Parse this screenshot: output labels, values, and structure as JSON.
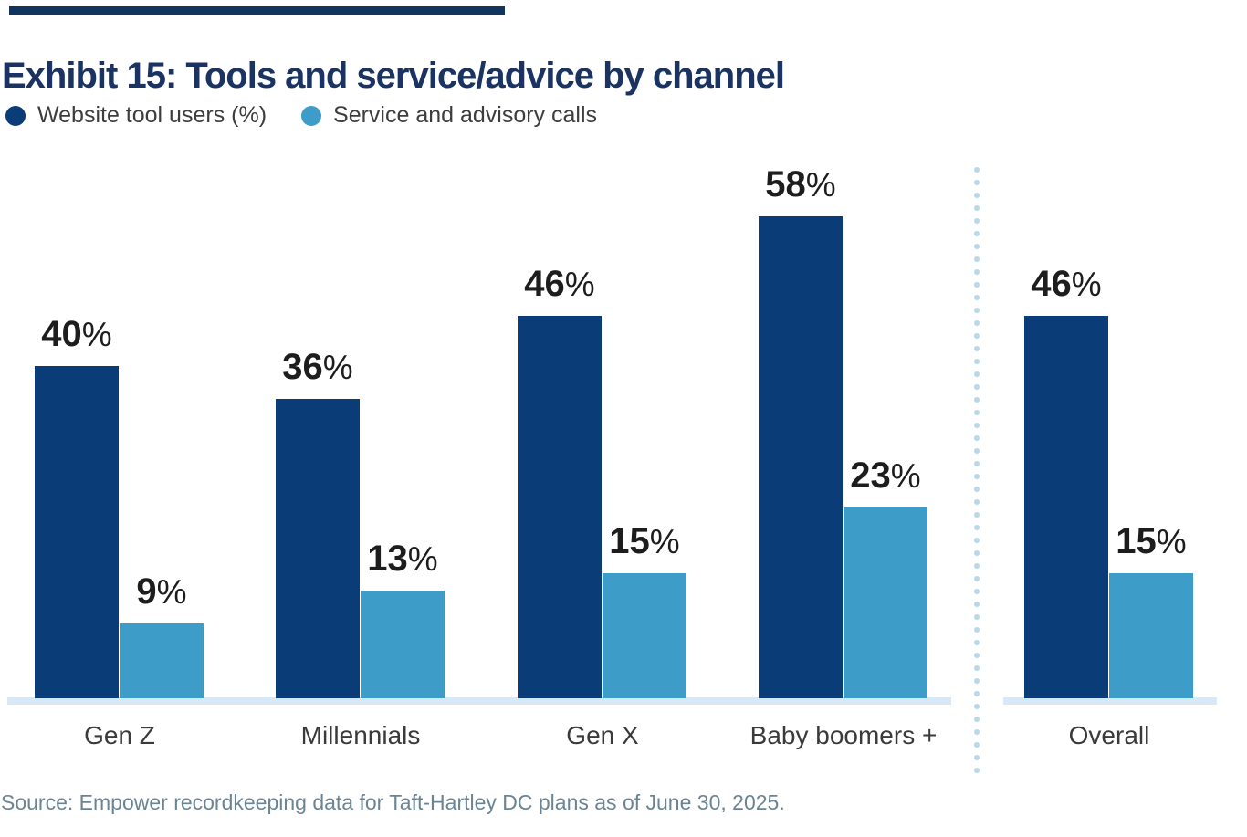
{
  "title": "Exhibit 15: Tools and service/advice by channel",
  "legend": {
    "items": [
      {
        "label": "Website tool users (%)",
        "color": "#0a3c78"
      },
      {
        "label": "Service and advisory calls",
        "color": "#3e9dc8"
      }
    ]
  },
  "source": "Source: Empower recordkeeping data for Taft-Hartley DC plans as of June 30, 2025.",
  "chart_data": {
    "type": "bar",
    "title": "Exhibit 15: Tools and service/advice by channel",
    "categories": [
      "Gen Z",
      "Millennials",
      "Gen X",
      "Baby boomers +",
      "Overall"
    ],
    "series": [
      {
        "name": "Website tool users (%)",
        "color": "#0a3c78",
        "values": [
          40,
          36,
          46,
          58,
          46
        ]
      },
      {
        "name": "Service and advisory calls",
        "color": "#3e9dc8",
        "values": [
          9,
          13,
          15,
          23,
          15
        ]
      }
    ],
    "value_suffix": "%",
    "ylim": [
      0,
      62
    ],
    "data_labels": true,
    "grid": false,
    "legend_position": "top-left",
    "separator_before_category": "Overall"
  },
  "colors": {
    "title": "#1a3363",
    "accent_bar": "#11355e",
    "value_label": "#1d1d1d",
    "axis_label": "#3a3a3a",
    "baseline": "#d7e9f6",
    "separator_dots": "#b9d8ec",
    "source_text": "#6b8494"
  }
}
